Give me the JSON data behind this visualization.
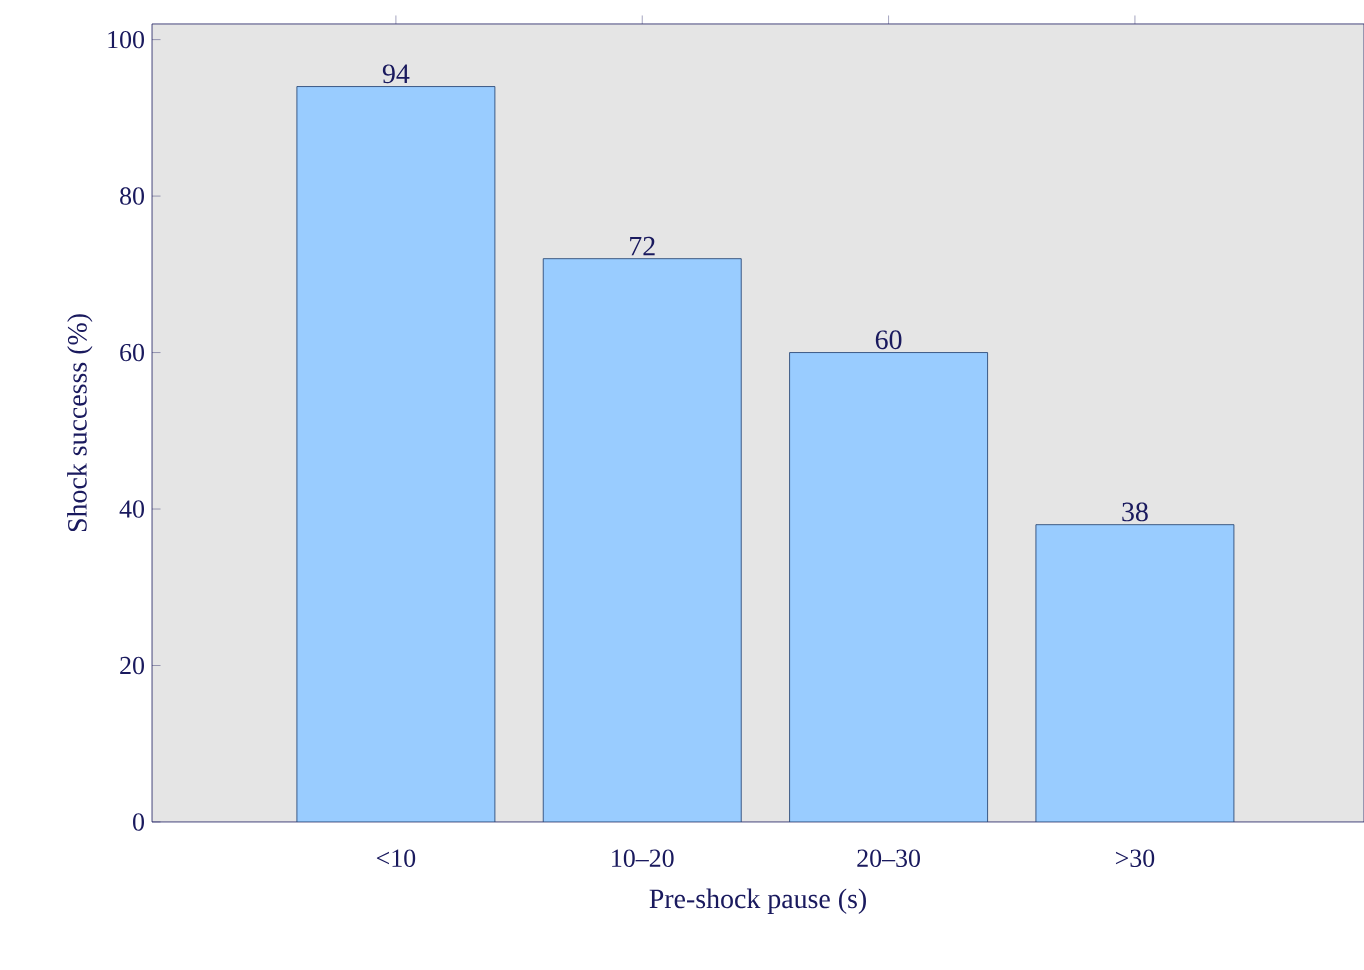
{
  "chart_data": {
    "type": "bar",
    "xlabel": "Pre-shock pause (s)",
    "ylabel": "Shock successs (%)",
    "categories": [
      "<10",
      "10–20",
      "20–30",
      ">30"
    ],
    "values": [
      94,
      72,
      60,
      38
    ],
    "color": "#99ccff",
    "ylim": [
      0,
      102
    ],
    "yticks": [
      0,
      20,
      40,
      60,
      80,
      100
    ],
    "data_labels": true
  }
}
